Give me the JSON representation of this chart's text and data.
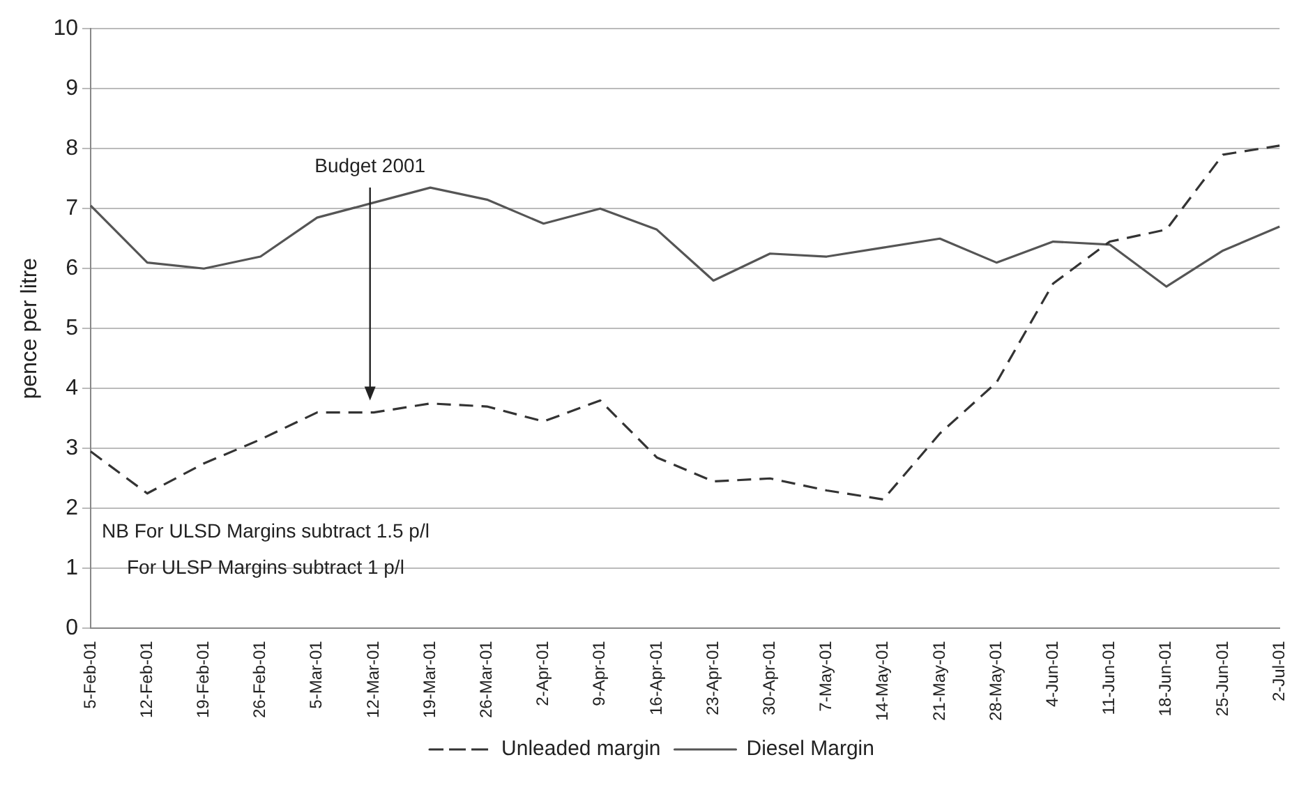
{
  "chart_data": {
    "type": "line",
    "ylabel": "pence per litre",
    "categories": [
      "5-Feb-01",
      "12-Feb-01",
      "19-Feb-01",
      "26-Feb-01",
      "5-Mar-01",
      "12-Mar-01",
      "19-Mar-01",
      "26-Mar-01",
      "2-Apr-01",
      "9-Apr-01",
      "16-Apr-01",
      "23-Apr-01",
      "30-Apr-01",
      "7-May-01",
      "14-May-01",
      "21-May-01",
      "28-May-01",
      "4-Jun-01",
      "11-Jun-01",
      "18-Jun-01",
      "25-Jun-01",
      "2-Jul-01"
    ],
    "series": [
      {
        "name": "Unleaded margin",
        "color": "#333333",
        "line_style": "dashed",
        "values": [
          2.95,
          2.25,
          2.75,
          3.15,
          3.6,
          3.6,
          3.75,
          3.7,
          3.45,
          3.8,
          2.85,
          2.45,
          2.5,
          2.3,
          2.15,
          3.25,
          4.1,
          5.75,
          6.45,
          6.65,
          7.9,
          8.05
        ]
      },
      {
        "name": "Diesel Margin",
        "color": "#555555",
        "line_style": "solid",
        "values": [
          7.05,
          6.1,
          6.0,
          6.2,
          6.85,
          7.1,
          7.35,
          7.15,
          6.75,
          7.0,
          6.65,
          5.8,
          6.25,
          6.2,
          6.35,
          6.5,
          6.1,
          6.45,
          6.4,
          5.7,
          6.3,
          6.7
        ]
      }
    ],
    "ylim": [
      0,
      10
    ],
    "yticks": [
      0,
      1,
      2,
      3,
      4,
      5,
      6,
      7,
      8,
      9,
      10
    ],
    "grid": "y",
    "legend": "bottom",
    "marker": "none",
    "annotations": [
      "Budget 2001",
      "NB For ULSD Margins subtract 1.5 p/l",
      "For ULSP Margins subtract 1 p/l"
    ]
  }
}
